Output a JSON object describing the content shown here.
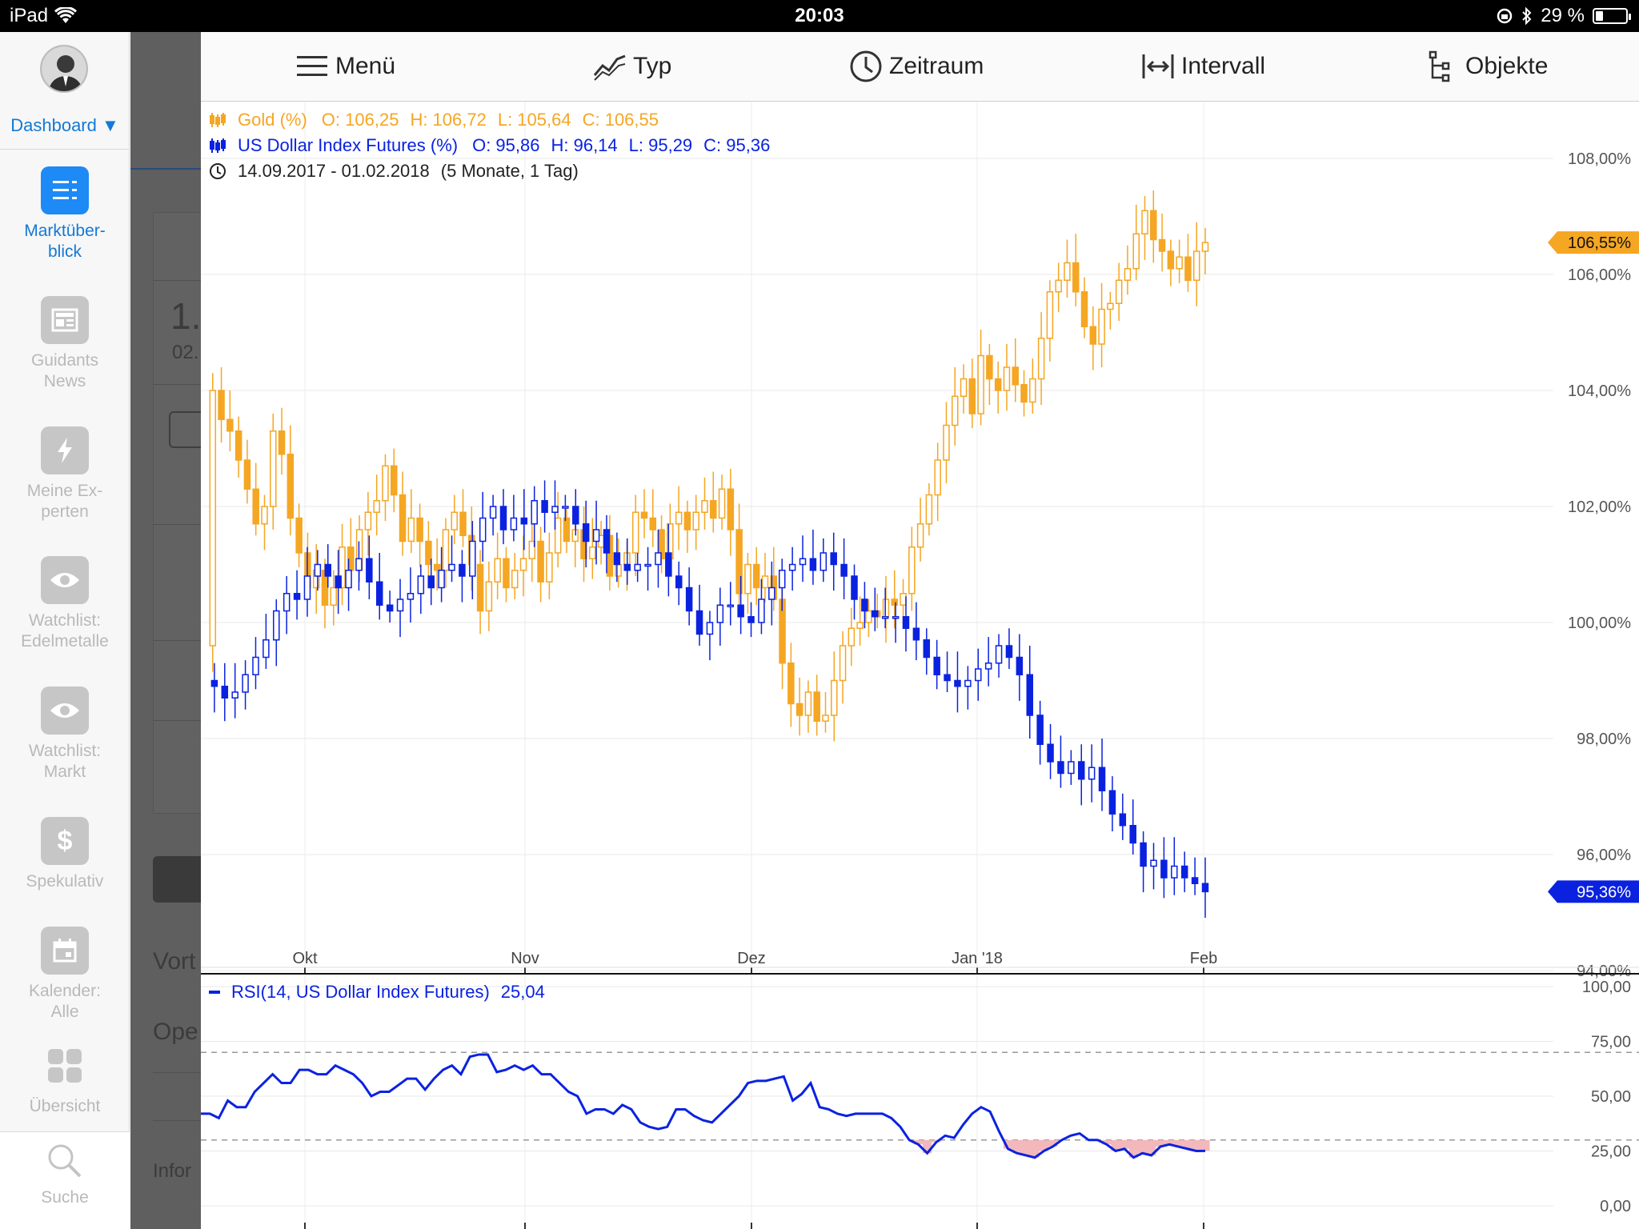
{
  "status_bar": {
    "device": "iPad",
    "time": "20:03",
    "battery": "29 %"
  },
  "sidebar": {
    "dashboard_label": "Dashboard ▼",
    "items": [
      {
        "label": "Marktüber-\nblick",
        "icon": "list-icon",
        "active": true
      },
      {
        "label": "Guidants\nNews",
        "icon": "news-icon"
      },
      {
        "label": "Meine Ex-\nperten",
        "icon": "lightning-icon"
      },
      {
        "label": "Watchlist:\nEdelmetalle",
        "icon": "eye-icon"
      },
      {
        "label": "Watchlist:\nMarkt",
        "icon": "eye-icon"
      },
      {
        "label": "Spekulativ",
        "icon": "dollar-icon"
      },
      {
        "label": "Kalender:\nAlle",
        "icon": "calendar-icon"
      },
      {
        "label": "Übersicht",
        "icon": "grid-icon"
      }
    ],
    "search_label": "Suche"
  },
  "background_text": {
    "a": "1.",
    "b": "02.",
    "c": "Vort",
    "d": "Ope",
    "e": "Infor"
  },
  "toolbar": {
    "menu": "Menü",
    "type": "Typ",
    "period": "Zeitraum",
    "interval": "Intervall",
    "objects": "Objekte"
  },
  "legend": {
    "gold": {
      "name": "Gold (%)",
      "o": "O: 106,25",
      "h": "H: 106,72",
      "l": "L: 105,64",
      "c": "C: 106,55"
    },
    "usd": {
      "name": "US Dollar Index Futures (%)",
      "o": "O: 95,86",
      "h": "H: 96,14",
      "l": "L: 95,29",
      "c": "C: 95,36"
    },
    "range": "14.09.2017 - 01.02.2018",
    "range_extra": "(5 Monate, 1 Tag)"
  },
  "rsi_legend": {
    "name": "RSI(14, US Dollar Index Futures)",
    "value": "25,04"
  },
  "colors": {
    "gold": "#f5a623",
    "usd": "#0a22e0",
    "rsi_fill": "#f3b8bc"
  },
  "chart_data": {
    "type": "candlestick",
    "x_ticks": [
      "Okt",
      "Nov",
      "Dez",
      "Jan '18",
      "Feb"
    ],
    "y_ticks": [
      "108,00%",
      "106,00%",
      "104,00%",
      "102,00%",
      "100,00%",
      "98,00%",
      "96,00%",
      "94,00%"
    ],
    "y_tick_values": [
      108,
      106,
      104,
      102,
      100,
      98,
      96,
      94
    ],
    "ylim": [
      94,
      108.4
    ],
    "last_labels": {
      "gold": "106,55%",
      "usd": "95,36%"
    },
    "series": [
      {
        "name": "Gold (%)",
        "close_path": [
          99.6,
          104,
          103.5,
          103.3,
          102.8,
          102.3,
          101.7,
          102,
          103.3,
          102.9,
          101.8,
          101.2,
          100.6,
          100.9,
          100.3,
          100.6,
          101.3,
          100.9,
          101.6,
          101.9,
          102.1,
          102.7,
          102.2,
          101.4,
          101.8,
          101.4,
          101,
          100.9,
          101.6,
          101.9,
          101.5,
          101,
          100.2,
          100.7,
          101.1,
          100.6,
          100.9,
          101.1,
          101.4,
          100.7,
          101.2,
          101.8,
          101.4,
          101.6,
          101.1,
          101.3,
          101.5,
          100.8,
          101,
          101.2,
          101.9,
          101.8,
          101.6,
          101.1,
          101.7,
          101.9,
          101.6,
          101.9,
          102.1,
          101.8,
          102.3,
          101.6,
          100.5,
          101,
          100.6,
          100.8,
          100.4,
          99.3,
          98.6,
          98.4,
          98.8,
          98.3,
          98.4,
          99,
          99.6,
          99.9,
          100,
          100.2,
          100.1,
          100.4,
          100.3,
          100.5,
          101.3,
          101.7,
          102.2,
          102.8,
          103.4,
          103.9,
          104.2,
          103.6,
          104.6,
          104.2,
          104,
          104.4,
          104.1,
          103.8,
          104.2,
          104.9,
          105.7,
          105.9,
          106.2,
          105.7,
          105.1,
          104.8,
          105.4,
          105.5,
          105.9,
          106.1,
          106.7,
          107.1,
          106.6,
          106.4,
          106.1,
          106.3,
          105.9,
          106.4,
          106.55
        ]
      },
      {
        "name": "US Dollar Index Futures (%)",
        "close_path": [
          99,
          98.9,
          98.7,
          98.8,
          99.1,
          99.4,
          99.7,
          100.2,
          100.5,
          100.4,
          100.8,
          101,
          100.8,
          100.6,
          100.9,
          101.1,
          100.7,
          100.3,
          100.2,
          100.4,
          100.5,
          100.8,
          100.6,
          100.9,
          101,
          100.8,
          101.4,
          101.8,
          102,
          101.6,
          101.8,
          101.7,
          102.1,
          101.9,
          102,
          102,
          101.7,
          101.4,
          101.6,
          101.2,
          101,
          100.9,
          101,
          101,
          101.2,
          100.8,
          100.6,
          100.2,
          99.8,
          100,
          100.3,
          100.3,
          100.1,
          100,
          100.4,
          100.6,
          100.9,
          101,
          101.1,
          100.9,
          101.2,
          101,
          100.8,
          100.4,
          100.2,
          100.1,
          100.1,
          100.1,
          99.9,
          99.7,
          99.4,
          99.1,
          99,
          98.9,
          99,
          99.2,
          99.3,
          99.6,
          99.4,
          99.1,
          98.4,
          97.9,
          97.6,
          97.4,
          97.6,
          97.3,
          97.5,
          97.1,
          96.7,
          96.5,
          96.2,
          95.8,
          95.9,
          95.6,
          95.8,
          95.6,
          95.5,
          95.36
        ]
      }
    ]
  },
  "rsi_data": {
    "type": "line",
    "y_ticks": [
      "100,00",
      "75,00",
      "50,00",
      "25,00",
      "0,00"
    ],
    "y_tick_values": [
      100,
      75,
      50,
      25,
      0
    ],
    "bands": [
      70,
      30
    ],
    "values": [
      42,
      42,
      40,
      48,
      45,
      45,
      52,
      56,
      60,
      56,
      56,
      62,
      62,
      60,
      60,
      64,
      62,
      60,
      56,
      50,
      52,
      52,
      55,
      58,
      58,
      53,
      58,
      62,
      64,
      60,
      68,
      69,
      69,
      61,
      62,
      64,
      62,
      64,
      60,
      60,
      56,
      52,
      50,
      42,
      44,
      44,
      42,
      46,
      44,
      38,
      36,
      35,
      36,
      44,
      44,
      41,
      39,
      38,
      42,
      46,
      50,
      56,
      57,
      57,
      58,
      59,
      48,
      51,
      56,
      45,
      44,
      42,
      41,
      42,
      42,
      42,
      42,
      40,
      36,
      30,
      28,
      24,
      29,
      32,
      31,
      37,
      42,
      45,
      43,
      34,
      26,
      24,
      23,
      22,
      25,
      27,
      30,
      32,
      33,
      30,
      30,
      28,
      25,
      26,
      22,
      24,
      23,
      27,
      28,
      27,
      26,
      25,
      25.04
    ]
  }
}
